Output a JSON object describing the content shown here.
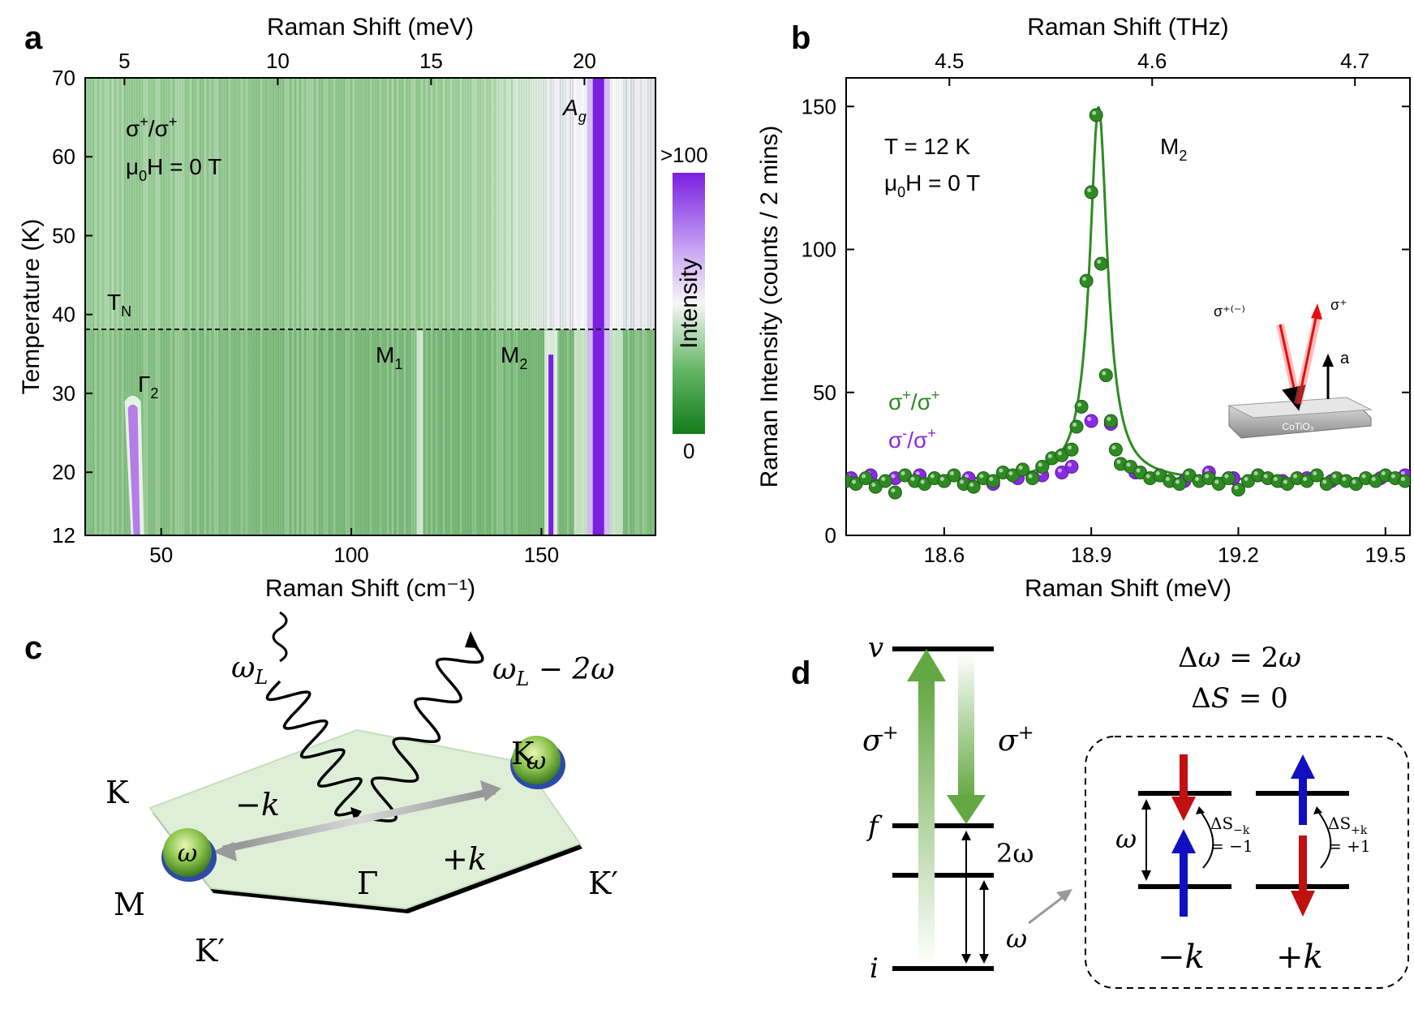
{
  "chart_data": [
    {
      "panel": "a",
      "type": "heatmap",
      "xlabel": "Raman Shift (cm⁻¹)",
      "top_xlabel": "Raman Shift (meV)",
      "ylabel": "Temperature (K)",
      "xlim": [
        30,
        180
      ],
      "ylim": [
        12,
        70
      ],
      "x_ticks": [
        "50",
        "100",
        "150"
      ],
      "top_ticks": [
        "5",
        "10",
        "15",
        "20"
      ],
      "y_ticks": [
        "12",
        "20",
        "30",
        "40",
        "50",
        "60",
        "70"
      ],
      "colorbar": {
        "label": "Intensity",
        "max_label": ">100",
        "min_label": "0"
      },
      "annotations": {
        "polarization": "σ⁺/σ⁺",
        "field": "μ₀H = 0 T",
        "tn": "Tₙ",
        "gamma2": "Γ₂",
        "m1": "M₁",
        "m2": "M₂",
        "ag": "Ag"
      },
      "tn_temperature": 38,
      "features": [
        {
          "name": "Γ₂",
          "x": 42.5,
          "t_range": [
            12,
            29
          ]
        },
        {
          "name": "M₁",
          "x": 118,
          "t_range": [
            12,
            38
          ]
        },
        {
          "name": "M₂",
          "x": 152.5,
          "t_range": [
            12,
            38
          ]
        },
        {
          "name": "Ag",
          "x": 165,
          "t_range": [
            12,
            70
          ]
        }
      ]
    },
    {
      "panel": "b",
      "type": "scatter",
      "xlabel": "Raman Shift (meV)",
      "top_xlabel": "Raman Shift (THz)",
      "ylabel": "Raman Intensity (counts / 2 mins)",
      "xlim": [
        18.4,
        19.55
      ],
      "ylim": [
        0,
        160
      ],
      "x_ticks": [
        "18.6",
        "18.9",
        "19.2",
        "19.5"
      ],
      "top_ticks": [
        "4.5",
        "4.6",
        "4.7"
      ],
      "y_ticks": [
        "0",
        "50",
        "100",
        "150"
      ],
      "annotations": {
        "temp": "T = 12 K",
        "field": "μ₀H = 0 T",
        "peak": "M₂",
        "inset_sigma_in": "σ⁺⁽⁻⁾",
        "inset_sigma_out": "σ⁺",
        "inset_axis": "a",
        "inset_sample": "CoTiO₃"
      },
      "fit": {
        "center": 18.915,
        "width": 0.022,
        "amplitude": 131,
        "baseline": 19
      },
      "series": [
        {
          "name": "σ⁺/σ⁺",
          "color": "#2e8b22",
          "x": [
            18.4,
            18.42,
            18.44,
            18.46,
            18.48,
            18.5,
            18.52,
            18.54,
            18.56,
            18.58,
            18.6,
            18.62,
            18.64,
            18.66,
            18.68,
            18.7,
            18.72,
            18.74,
            18.76,
            18.78,
            18.8,
            18.82,
            18.84,
            18.86,
            18.87,
            18.88,
            18.89,
            18.9,
            18.91,
            18.92,
            18.93,
            18.94,
            18.95,
            18.96,
            18.98,
            19.0,
            19.02,
            19.04,
            19.06,
            19.08,
            19.1,
            19.12,
            19.14,
            19.16,
            19.18,
            19.2,
            19.22,
            19.24,
            19.26,
            19.28,
            19.3,
            19.32,
            19.34,
            19.36,
            19.38,
            19.4,
            19.42,
            19.44,
            19.46,
            19.48,
            19.5,
            19.52,
            19.54
          ],
          "y": [
            19,
            18,
            20,
            17,
            19,
            15,
            21,
            19,
            18,
            20,
            19,
            21,
            18,
            17,
            20,
            19,
            22,
            21,
            23,
            20,
            24,
            27,
            28,
            30,
            38,
            45,
            89,
            120,
            147,
            95,
            56,
            40,
            30,
            25,
            24,
            22,
            20,
            21,
            19,
            18,
            21,
            19,
            20,
            18,
            20,
            16,
            19,
            21,
            20,
            19,
            18,
            20,
            19,
            21,
            18,
            20,
            19,
            18,
            20,
            19,
            21,
            20,
            19
          ]
        },
        {
          "name": "σ⁻/σ⁺",
          "color": "#8a2be2",
          "x": [
            18.41,
            18.45,
            18.5,
            18.55,
            18.6,
            18.65,
            18.7,
            18.75,
            18.8,
            18.84,
            18.86,
            18.9,
            18.94,
            18.99,
            19.04,
            19.09,
            19.14,
            19.19,
            19.24,
            19.29,
            19.34,
            19.39,
            19.44,
            19.49,
            19.54
          ],
          "y": [
            20,
            21,
            20,
            21,
            19,
            20,
            18,
            20,
            21,
            22,
            24,
            40,
            39,
            22,
            21,
            19,
            22,
            20,
            21,
            19,
            20,
            19,
            18,
            20,
            21
          ]
        }
      ]
    }
  ],
  "panel_c": {
    "letter": "c",
    "omega_l": "ωL",
    "omega_out": "ωL − 2ω",
    "k_top_right": "K",
    "k_left": "K",
    "m": "M",
    "kprime_right": "K′",
    "kprime_bottom": "K′",
    "minus_k": "−k",
    "plus_k": "+k",
    "gamma": "Γ",
    "omega": "ω"
  },
  "panel_d": {
    "letter": "d",
    "v": "v",
    "f": "f",
    "i": "i",
    "sigma_up": "σ⁺",
    "sigma_down": "σ⁺",
    "two_omega": "2ω",
    "omega": "ω",
    "delta_omega": "Δω = 2ω",
    "delta_s": "ΔS = 0",
    "box_omega": "ω",
    "ds_minus": "ΔS−k",
    "ds_minus_val": "= −1",
    "ds_plus": "ΔS+k",
    "ds_plus_val": "= +1",
    "minus_k": "−k",
    "plus_k": "+k"
  },
  "panel_letters": {
    "a": "a",
    "b": "b"
  }
}
